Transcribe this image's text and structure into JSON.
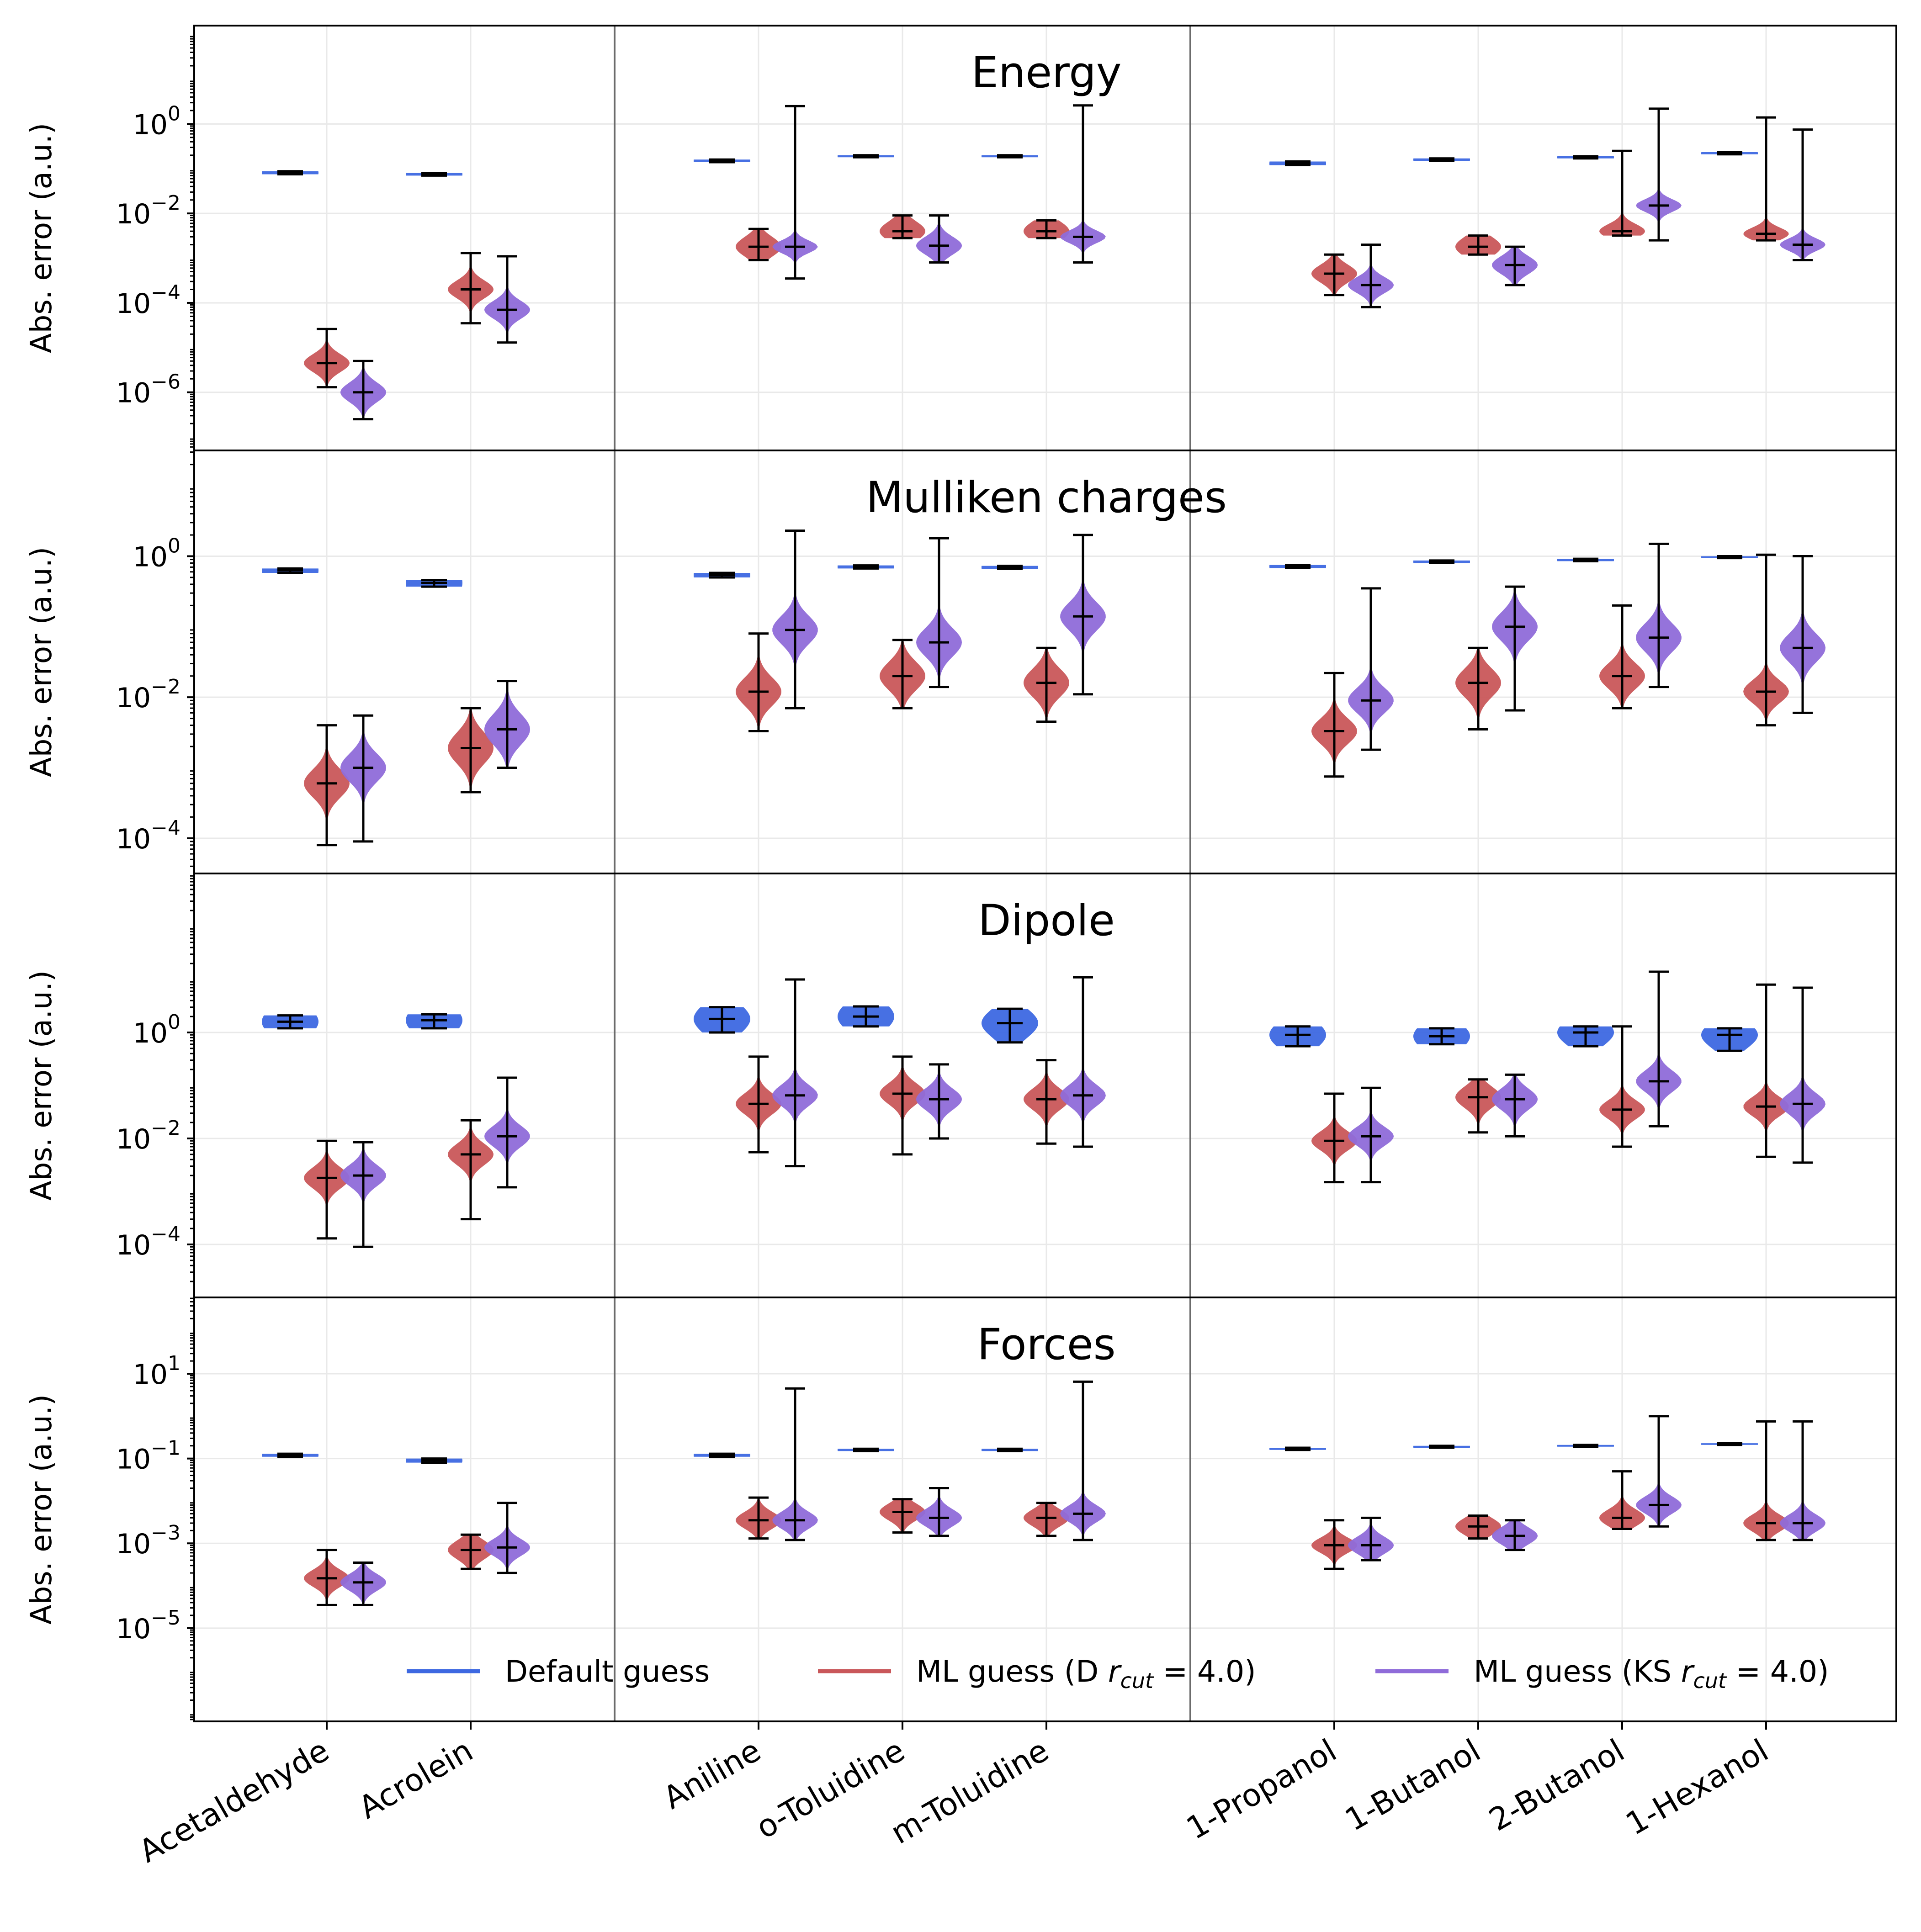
{
  "colors": {
    "default": "#3d68e1",
    "ml_d": "#c9575a",
    "ml_ks": "#8f6bd9",
    "whisker": "#000000",
    "separator": "#6b6b6b",
    "grid": "#e9e9e9"
  },
  "chart_data": {
    "type": "violin",
    "yscale": "log",
    "categories": [
      "Acetaldehyde",
      "Acrolein",
      "Aniline",
      "o-Toluidine",
      "m-Toluidine",
      "1-Propanol",
      "1-Butanol",
      "2-Butanol",
      "1-Hexanol"
    ],
    "category_groups": [
      [
        "Acetaldehyde",
        "Acrolein"
      ],
      [
        "Aniline",
        "o-Toluidine",
        "m-Toluidine"
      ],
      [
        "1-Propanol",
        "1-Butanol",
        "2-Butanol",
        "1-Hexanol"
      ]
    ],
    "legend": {
      "location": "lower center",
      "entries": [
        {
          "series": "default",
          "text": "Default guess"
        },
        {
          "series": "ml_d",
          "text": "ML guess (D ",
          "math": "r",
          "sub": "cut",
          "tail": " = 4.0)"
        },
        {
          "series": "ml_ks",
          "text": "ML guess (KS ",
          "math": "r",
          "sub": "cut",
          "tail": " = 4.0)"
        }
      ]
    },
    "panels": [
      {
        "title": "Energy",
        "ylabel": "Abs. error (a.u.)",
        "ylim_exp": [
          -7.3,
          2.2
        ],
        "yticks": [
          {
            "exp": 0,
            "text": "10",
            "sup": "0",
            "plain": false
          },
          {
            "exp": -2,
            "text": "10",
            "sup": "−2",
            "plain": false
          },
          {
            "exp": -4,
            "text": "10",
            "sup": "−4",
            "plain": false
          },
          {
            "exp": -6,
            "text": "10",
            "sup": "−6",
            "plain": false
          }
        ],
        "series": {
          "default": [
            [
              0.075,
              0.081,
              0.088,
              0.3
            ],
            [
              0.07,
              0.075,
              0.08,
              0.3
            ],
            [
              0.14,
              0.15,
              0.16,
              0.3
            ],
            [
              0.18,
              0.19,
              0.2,
              0.3
            ],
            [
              0.18,
              0.19,
              0.2,
              0.3
            ],
            [
              0.12,
              0.13,
              0.145,
              0.4
            ],
            [
              0.15,
              0.16,
              0.17,
              0.3
            ],
            [
              0.17,
              0.18,
              0.19,
              0.3
            ],
            [
              0.21,
              0.22,
              0.235,
              0.3
            ]
          ],
          "ml_d": [
            [
              1.3e-06,
              4.5e-06,
              2.6e-05,
              0.2
            ],
            [
              3.5e-05,
              0.0002,
              0.0013,
              0.2
            ],
            [
              0.0009,
              0.0018,
              0.0045,
              0.22
            ],
            [
              0.0028,
              0.004,
              0.009,
              0.22
            ],
            [
              0.0028,
              0.004,
              0.007,
              0.22
            ],
            [
              0.00015,
              0.00045,
              0.0012,
              0.2
            ],
            [
              0.0012,
              0.0018,
              0.0032,
              0.22
            ],
            [
              0.0032,
              0.004,
              0.25,
              0.16
            ],
            [
              0.0025,
              0.0035,
              1.4,
              0.14
            ]
          ],
          "ml_ks": [
            [
              2.5e-07,
              1e-06,
              5e-06,
              0.22
            ],
            [
              1.3e-05,
              7e-05,
              0.0011,
              0.2
            ],
            [
              0.00035,
              0.0018,
              2.5,
              0.14
            ],
            [
              0.0008,
              0.0019,
              0.009,
              0.2
            ],
            [
              0.0008,
              0.003,
              2.6,
              0.14
            ],
            [
              8e-05,
              0.00025,
              0.002,
              0.18
            ],
            [
              0.00025,
              0.0007,
              0.0018,
              0.2
            ],
            [
              0.0025,
              0.015,
              2.2,
              0.14
            ],
            [
              0.0009,
              0.002,
              0.75,
              0.14
            ]
          ]
        }
      },
      {
        "title": "Mulliken charges",
        "ylabel": "Abs. error (a.u.)",
        "ylim_exp": [
          -4.5,
          1.5
        ],
        "yticks": [
          {
            "exp": 0,
            "text": "10",
            "sup": "0",
            "plain": false
          },
          {
            "exp": -2,
            "text": "10",
            "sup": "−2",
            "plain": false
          },
          {
            "exp": -4,
            "text": "10",
            "sup": "−4",
            "plain": false
          }
        ],
        "series": {
          "default": [
            [
              0.58,
              0.63,
              0.67,
              0.3
            ],
            [
              0.37,
              0.42,
              0.46,
              0.3
            ],
            [
              0.5,
              0.54,
              0.58,
              0.3
            ],
            [
              0.67,
              0.71,
              0.74,
              0.3
            ],
            [
              0.66,
              0.7,
              0.73,
              0.3
            ],
            [
              0.68,
              0.72,
              0.75,
              0.3
            ],
            [
              0.8,
              0.84,
              0.87,
              0.3
            ],
            [
              0.85,
              0.89,
              0.92,
              0.3
            ],
            [
              0.94,
              0.98,
              1.0,
              0.3
            ]
          ],
          "ml_d": [
            [
              8e-05,
              0.0006,
              0.004,
              0.2
            ],
            [
              0.00045,
              0.0019,
              0.007,
              0.22
            ],
            [
              0.0033,
              0.012,
              0.08,
              0.2
            ],
            [
              0.007,
              0.02,
              0.065,
              0.2
            ],
            [
              0.0045,
              0.016,
              0.05,
              0.2
            ],
            [
              0.00075,
              0.0033,
              0.022,
              0.18
            ],
            [
              0.0035,
              0.016,
              0.05,
              0.2
            ],
            [
              0.007,
              0.02,
              0.2,
              0.18
            ],
            [
              0.004,
              0.012,
              1.05,
              0.16
            ]
          ],
          "ml_ks": [
            [
              9e-05,
              0.001,
              0.0055,
              0.2
            ],
            [
              0.001,
              0.0035,
              0.017,
              0.22
            ],
            [
              0.007,
              0.09,
              2.3,
              0.2
            ],
            [
              0.014,
              0.06,
              1.8,
              0.2
            ],
            [
              0.011,
              0.14,
              2.0,
              0.2
            ],
            [
              0.0018,
              0.009,
              0.35,
              0.18
            ],
            [
              0.0065,
              0.1,
              0.37,
              0.2
            ],
            [
              0.014,
              0.07,
              1.5,
              0.2
            ],
            [
              0.006,
              0.05,
              1.0,
              0.2
            ]
          ]
        }
      },
      {
        "title": "Dipole",
        "ylabel": "Abs. error (a.u.)",
        "ylim_exp": [
          -5.0,
          3.0
        ],
        "yticks": [
          {
            "exp": 0,
            "text": "10",
            "sup": "0",
            "plain": false
          },
          {
            "exp": -2,
            "text": "10",
            "sup": "−2",
            "plain": false
          },
          {
            "exp": -4,
            "text": "10",
            "sup": "−4",
            "plain": false
          }
        ],
        "series": {
          "default": [
            [
              1.2,
              1.6,
              2.1,
              0.3
            ],
            [
              1.2,
              1.7,
              2.2,
              0.3
            ],
            [
              1.0,
              1.8,
              3.0,
              0.3
            ],
            [
              1.3,
              2.0,
              3.1,
              0.3
            ],
            [
              0.65,
              1.5,
              2.8,
              0.28
            ],
            [
              0.55,
              0.9,
              1.3,
              0.28
            ],
            [
              0.6,
              0.85,
              1.2,
              0.28
            ],
            [
              0.55,
              1.0,
              1.3,
              0.26
            ],
            [
              0.45,
              0.9,
              1.2,
              0.26
            ]
          ],
          "ml_d": [
            [
              0.00013,
              0.0018,
              0.009,
              0.2
            ],
            [
              0.0003,
              0.005,
              0.022,
              0.2
            ],
            [
              0.0055,
              0.045,
              0.35,
              0.2
            ],
            [
              0.005,
              0.07,
              0.35,
              0.2
            ],
            [
              0.008,
              0.055,
              0.3,
              0.2
            ],
            [
              0.0015,
              0.009,
              0.07,
              0.18
            ],
            [
              0.013,
              0.06,
              0.13,
              0.2
            ],
            [
              0.007,
              0.035,
              1.3,
              0.18
            ],
            [
              0.0045,
              0.04,
              8.0,
              0.18
            ]
          ],
          "ml_ks": [
            [
              9e-05,
              0.002,
              0.0085,
              0.2
            ],
            [
              0.0012,
              0.011,
              0.14,
              0.2
            ],
            [
              0.003,
              0.065,
              10.0,
              0.2
            ],
            [
              0.01,
              0.055,
              0.25,
              0.2
            ],
            [
              0.007,
              0.065,
              11.0,
              0.2
            ],
            [
              0.0015,
              0.011,
              0.09,
              0.18
            ],
            [
              0.011,
              0.055,
              0.16,
              0.2
            ],
            [
              0.017,
              0.12,
              14.0,
              0.2
            ],
            [
              0.0035,
              0.045,
              7.0,
              0.2
            ]
          ]
        }
      },
      {
        "title": "Forces",
        "ylabel": "Abs. error (a.u.)",
        "ylim_exp": [
          -7.2,
          2.8
        ],
        "yticks": [
          {
            "exp": 1,
            "text": "10",
            "sup": "1",
            "plain": false
          },
          {
            "exp": -1,
            "text": "10",
            "sup": "−1",
            "plain": false
          },
          {
            "exp": -3,
            "text": "10",
            "sup": "−3",
            "plain": false
          },
          {
            "exp": -5,
            "text": "10",
            "sup": "−5",
            "plain": false
          }
        ],
        "series": {
          "default": [
            [
              0.11,
              0.12,
              0.13,
              0.3
            ],
            [
              0.08,
              0.09,
              0.1,
              0.3
            ],
            [
              0.11,
              0.12,
              0.13,
              0.3
            ],
            [
              0.15,
              0.16,
              0.17,
              0.3
            ],
            [
              0.15,
              0.16,
              0.17,
              0.3
            ],
            [
              0.16,
              0.17,
              0.18,
              0.3
            ],
            [
              0.18,
              0.19,
              0.2,
              0.3
            ],
            [
              0.19,
              0.2,
              0.21,
              0.3
            ],
            [
              0.21,
              0.22,
              0.23,
              0.3
            ]
          ],
          "ml_d": [
            [
              3.5e-05,
              0.00015,
              0.0007,
              0.2
            ],
            [
              0.00025,
              0.0007,
              0.0016,
              0.22
            ],
            [
              0.0013,
              0.0035,
              0.012,
              0.2
            ],
            [
              0.0018,
              0.0055,
              0.011,
              0.2
            ],
            [
              0.0015,
              0.004,
              0.009,
              0.2
            ],
            [
              0.00025,
              0.0009,
              0.0035,
              0.18
            ],
            [
              0.0013,
              0.0025,
              0.0045,
              0.2
            ],
            [
              0.0022,
              0.004,
              0.05,
              0.2
            ],
            [
              0.0012,
              0.003,
              0.75,
              0.2
            ]
          ],
          "ml_ks": [
            [
              3.5e-05,
              0.00012,
              0.00035,
              0.2
            ],
            [
              0.0002,
              0.0008,
              0.009,
              0.2
            ],
            [
              0.0012,
              0.0035,
              4.5,
              0.2
            ],
            [
              0.0015,
              0.004,
              0.02,
              0.2
            ],
            [
              0.0012,
              0.005,
              6.5,
              0.2
            ],
            [
              0.0004,
              0.0009,
              0.004,
              0.2
            ],
            [
              0.0007,
              0.0015,
              0.0035,
              0.2
            ],
            [
              0.0025,
              0.008,
              1.0,
              0.2
            ],
            [
              0.0012,
              0.003,
              0.75,
              0.2
            ]
          ]
        }
      }
    ],
    "note": "series values per category: [whisker_min, median, whisker_max, log-spread of body]"
  }
}
